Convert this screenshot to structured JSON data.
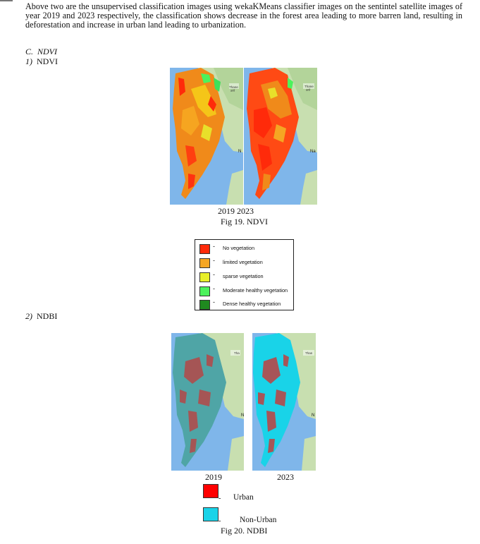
{
  "paragraph": "Above two are the unsupervised classification images using wekaKMeans classifier images on the sentintel satellite images of year 2019 and 2023 respectively, the classification shows decrease in the forest area leading to more barren land, resulting in deforestation and increase in urban land leading to urbanization.",
  "section_c": {
    "num": "C.",
    "title": "NDVI"
  },
  "section_1": {
    "num": "1)",
    "title": "NDVI"
  },
  "section_2": {
    "num": "2)",
    "title": "NDBI"
  },
  "fig19": {
    "years_label": "2019 2023",
    "caption": "Fig 19. NDVI",
    "map_labels": {
      "thane": "Thane",
      "thane_local": "ठाणे",
      "north": "N",
      "north_2023": "Na"
    }
  },
  "ndvi_legend": [
    {
      "label": "No vegetation",
      "color": "#ff2a0a"
    },
    {
      "label": "limited vegetation",
      "color": "#f5a623"
    },
    {
      "label": "sparse vegetation",
      "color": "#e8f02a"
    },
    {
      "label": "Moderate healthy vegetation",
      "color": "#4cf25c"
    },
    {
      "label": "Dense healthy vegetation",
      "color": "#1f8a1f"
    }
  ],
  "legend_dash": "-",
  "fig20": {
    "year_left": "2019",
    "year_right": "2023",
    "caption": "Fig 20. NDBI",
    "map_labels": {
      "thane": "Tha",
      "thane_2023": "Than",
      "north": "N"
    }
  },
  "ndbi_legend": [
    {
      "label": "Urban",
      "color": "#ff0000"
    },
    {
      "label": "Non-Urban",
      "color": "#19d3e8"
    }
  ],
  "colors": {
    "sea": "#7fb6ea",
    "land": "#c8dfb0",
    "land_light": "#dcead0"
  }
}
